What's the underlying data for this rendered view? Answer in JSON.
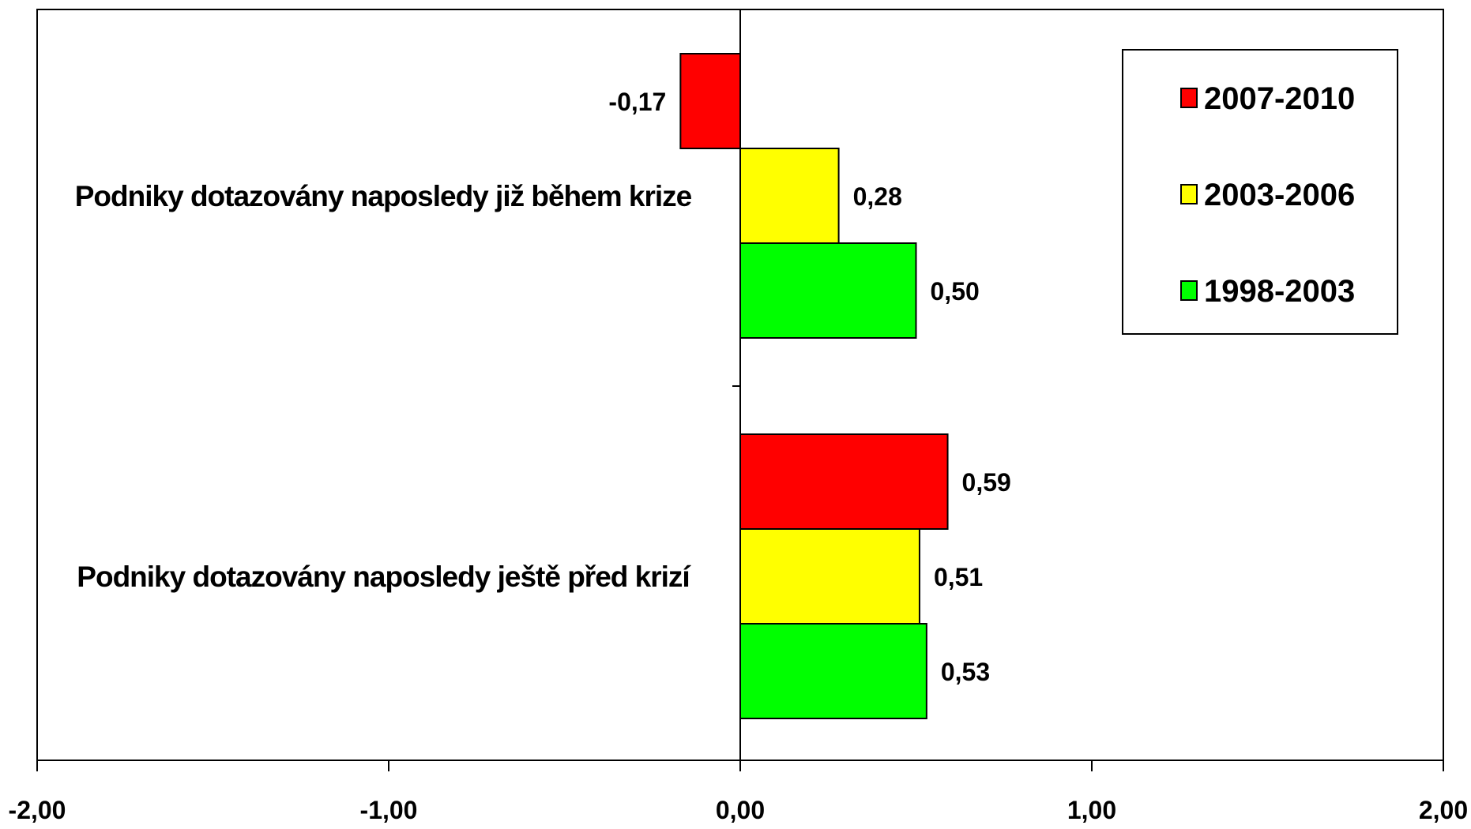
{
  "chart_data": {
    "type": "bar",
    "orientation": "horizontal",
    "categories": [
      "Podniky dotazovány naposledy již během krize",
      "Podniky dotazovány naposledy ještě před krizí"
    ],
    "series": [
      {
        "name": "2007-2010",
        "color": "#ff0000",
        "values": [
          -0.17,
          0.59
        ],
        "labels": [
          "-0,17",
          "0,59"
        ]
      },
      {
        "name": "2003-2006",
        "color": "#ffff00",
        "values": [
          0.28,
          0.51
        ],
        "labels": [
          "0,28",
          "0,51"
        ]
      },
      {
        "name": "1998-2003",
        "color": "#00ff00",
        "values": [
          0.5,
          0.53
        ],
        "labels": [
          "0,50",
          "0,53"
        ]
      }
    ],
    "xlim": [
      -2,
      2
    ],
    "xticks": [
      -2,
      -1,
      0,
      1,
      2
    ],
    "xtick_labels": [
      "-2,00",
      "-1,00",
      "0,00",
      "1,00",
      "2,00"
    ],
    "title": "",
    "xlabel": "",
    "ylabel": "",
    "grid": false,
    "legend_position": "top-right"
  }
}
